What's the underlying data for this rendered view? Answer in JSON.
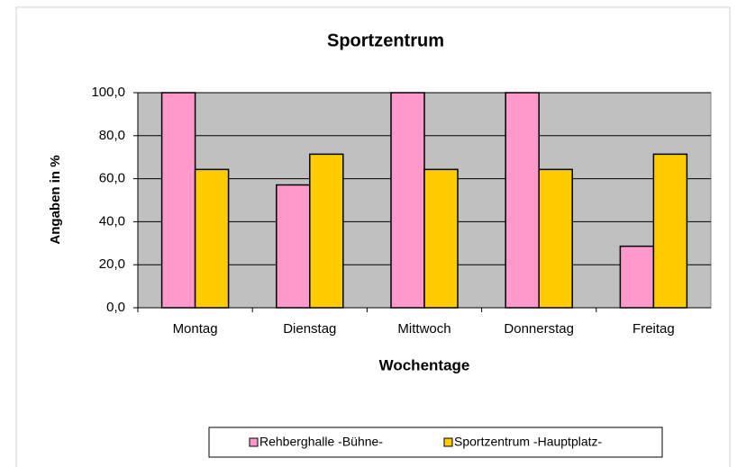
{
  "chart_data": {
    "type": "bar",
    "title": "Sportzentrum",
    "x_label": "Wochentage",
    "y_label": "Angaben in %",
    "categories": [
      "Montag",
      "Dienstag",
      "Mittwoch",
      "Donnerstag",
      "Freitag"
    ],
    "series": [
      {
        "name": "Rehberghalle -Bühne-",
        "color": "#ff99cc",
        "values": [
          100,
          57.1,
          100,
          100,
          28.6
        ]
      },
      {
        "name": "Sportzentrum -Hauptplatz-",
        "color": "#ffcc00",
        "values": [
          64.3,
          71.4,
          64.3,
          64.3,
          71.4
        ]
      }
    ],
    "ylim": [
      0,
      100
    ],
    "yticks": [
      {
        "value": 0,
        "label": "0,0"
      },
      {
        "value": 20,
        "label": "20,0"
      },
      {
        "value": 40,
        "label": "40,0"
      },
      {
        "value": 60,
        "label": "60,0"
      },
      {
        "value": 80,
        "label": "80,0"
      },
      {
        "value": 100,
        "label": "100,0"
      }
    ],
    "grid": true,
    "plot_background": "#c0c0c0",
    "legend": "bottom"
  }
}
